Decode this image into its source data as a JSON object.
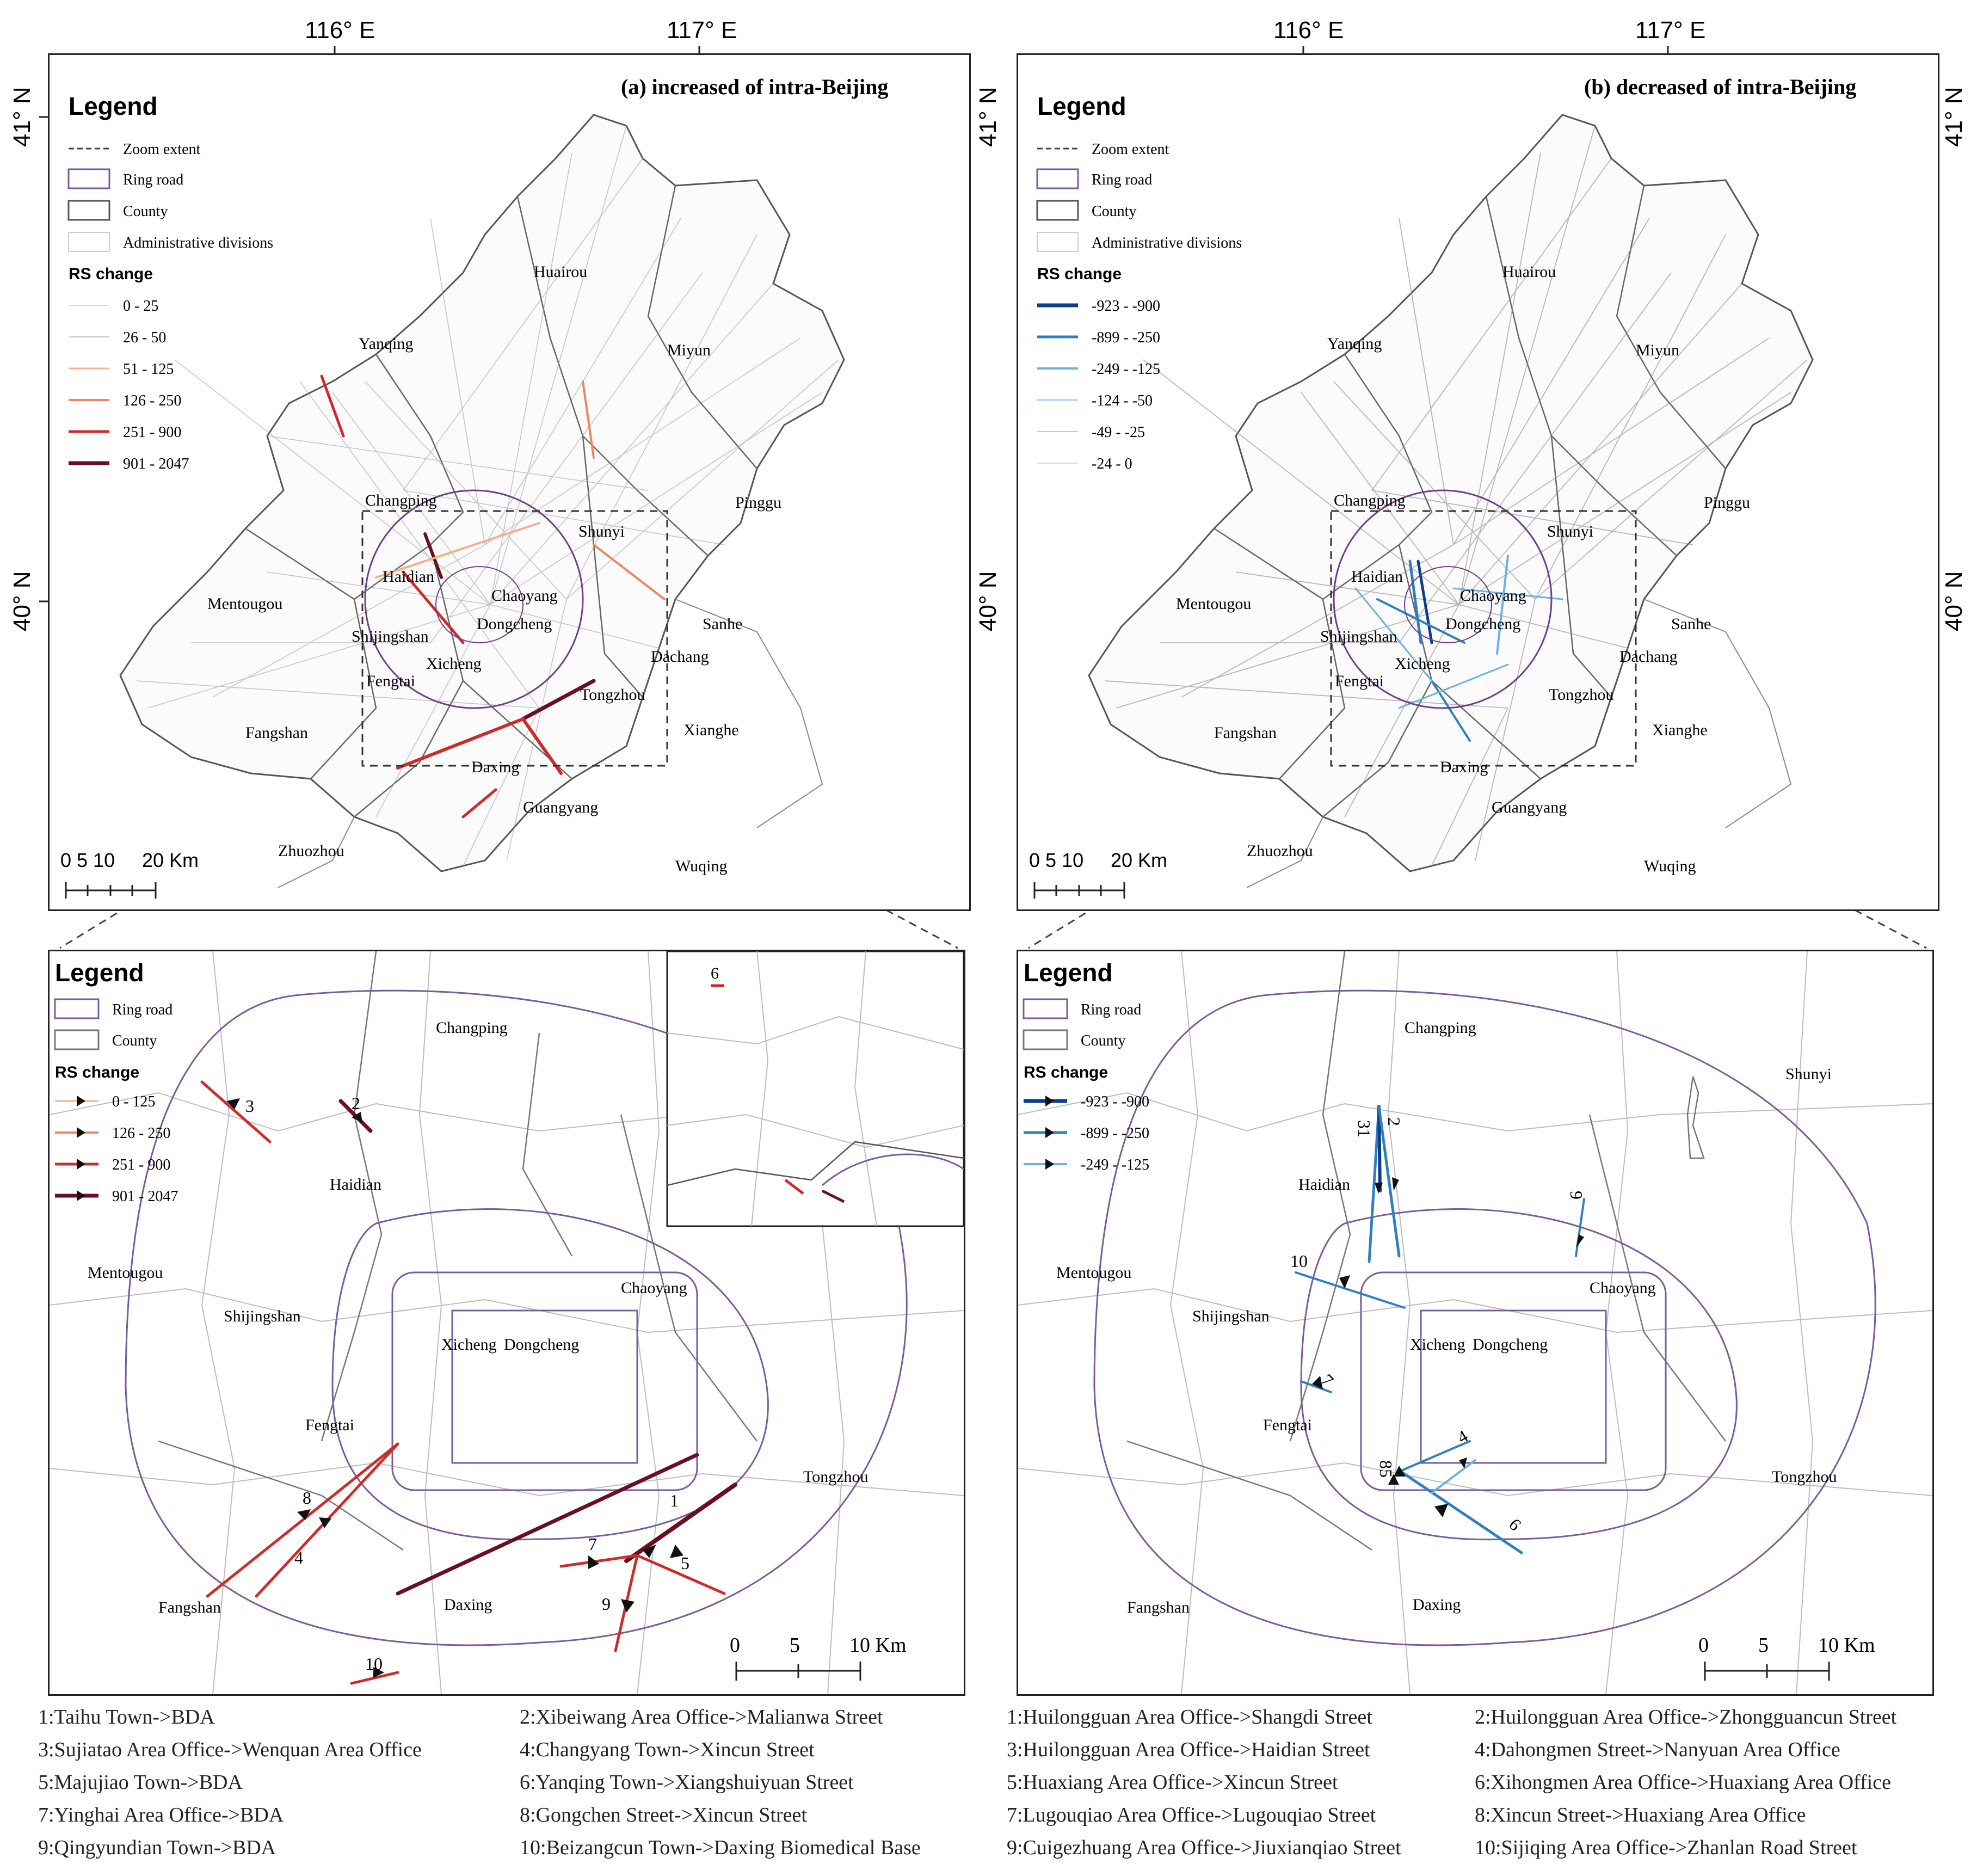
{
  "coords": {
    "lon_116": "116° E",
    "lon_117": "117° E",
    "lat_41": "41° N",
    "lat_40": "40° N"
  },
  "panel_a": {
    "title": "(a) increased of intra-Beijing",
    "legend_title": "Legend",
    "legend_items": [
      "Zoom extent",
      "Ring road",
      "County",
      "Administrative divisions"
    ],
    "rs_title": "RS change",
    "rs_classes": [
      "0 - 25",
      "26 - 50",
      "51 - 125",
      "126 - 250",
      "251 - 900",
      "901 - 2047"
    ],
    "rs_colors": [
      "#d8d8d8",
      "#c7c7c7",
      "#f4b08a",
      "#ee8560",
      "#cf2a2a",
      "#6b0f1f"
    ]
  },
  "panel_b": {
    "title": "(b) decreased of intra-Beijing",
    "legend_title": "Legend",
    "legend_items": [
      "Zoom extent",
      "Ring road",
      "County",
      "Administrative divisions"
    ],
    "rs_title": "RS change",
    "rs_classes": [
      "-923 - -900",
      "-899 - -250",
      "-249 - -125",
      "-124 - -50",
      "-49 - -25",
      "-24 - 0"
    ],
    "rs_colors": [
      "#0b3d8c",
      "#2f7fc0",
      "#6fb0de",
      "#a9d2ec",
      "#c9c9c9",
      "#dcdcdc"
    ]
  },
  "places_top": {
    "huairou": "Huairou",
    "yanqing": "Yanqing",
    "miyun": "Miyun",
    "changping": "Changping",
    "pinggu": "Pinggu",
    "shunyi": "Shunyi",
    "haidian": "Haidian",
    "chaoyang": "Chaoyang",
    "mentougou": "Mentougou",
    "dongcheng": "Dongcheng",
    "shijingshan": "Shijingshan",
    "sanhe": "Sanhe",
    "xicheng": "Xicheng",
    "dachang": "Dachang",
    "fengtai": "Fengtai",
    "tongzhou": "Tongzhou",
    "fangshan": "Fangshan",
    "xianghe": "Xianghe",
    "daxing": "Daxing",
    "guangyang": "Guangyang",
    "zhuozhou": "Zhuozhou",
    "wuqing": "Wuqing"
  },
  "scale_top": {
    "ticks": "0 5 10",
    "end": "20 Km"
  },
  "zoom_a": {
    "legend_title": "Legend",
    "legend_items": [
      "Ring road",
      "County"
    ],
    "rs_title": "RS change",
    "rs_classes": [
      "0 - 125",
      "126 - 250",
      "251 - 900",
      "901 - 2047"
    ],
    "places": {
      "changping": "Changping",
      "haidian": "Haidian",
      "mentougou": "Mentougou",
      "shijingshan": "Shijingshan",
      "chaoyang": "Chaoyang",
      "xicheng": "Xicheng",
      "dongcheng": "Dongcheng",
      "fengtai": "Fengtai",
      "tongzhou": "Tongzhou",
      "fangshan": "Fangshan",
      "daxing": "Daxing"
    },
    "flow_labels": [
      "1",
      "2",
      "3",
      "4",
      "5",
      "6",
      "7",
      "8",
      "9",
      "10"
    ],
    "scale": {
      "t0": "0",
      "t5": "5",
      "t10": "10 Km"
    }
  },
  "zoom_b": {
    "legend_title": "Legend",
    "legend_items": [
      "Ring road",
      "County"
    ],
    "rs_title": "RS change",
    "rs_classes": [
      "-923 - -900",
      "-899 - -250",
      "-249 - -125"
    ],
    "places": {
      "changping": "Changping",
      "shunyi": "Shunyi",
      "haidian": "Haidian",
      "mentougou": "Mentougou",
      "shijingshan": "Shijingshan",
      "chaoyang": "Chaoyang",
      "xicheng": "Xicheng",
      "dongcheng": "Dongcheng",
      "fengtai": "Fengtai",
      "tongzhou": "Tongzhou",
      "fangshan": "Fangshan",
      "daxing": "Daxing"
    },
    "flow_labels": [
      "31",
      "2",
      "9",
      "10",
      "7",
      "4",
      "85",
      "6"
    ],
    "scale": {
      "t0": "0",
      "t5": "5",
      "t10": "10 Km"
    }
  },
  "captions_a": [
    "1:Taihu Town->BDA",
    "2:Xibeiwang Area Office->Malianwa Street",
    "3:Sujiatao Area Office->Wenquan Area Office",
    "4:Changyang Town->Xincun Street",
    "5:Majujiao Town->BDA",
    "6:Yanqing Town->Xiangshuiyuan Street",
    "7:Yinghai Area Office->BDA",
    "8:Gongchen Street->Xincun Street",
    "9:Qingyundian Town->BDA",
    "10:Beizangcun Town->Daxing Biomedical Base"
  ],
  "captions_b": [
    "1:Huilongguan Area Office->Shangdi Street",
    "2:Huilongguan Area Office->Zhongguancun Street",
    "3:Huilongguan Area Office->Haidian Street",
    "4:Dahongmen Street->Nanyuan Area Office",
    "5:Huaxiang Area Office->Xincun Street",
    "6:Xihongmen Area Office->Huaxiang Area Office",
    "7:Lugouqiao Area Office->Lugouqiao Street",
    "8:Xincun Street->Huaxiang Area Office",
    "9:Cuigezhuang Area Office->Jiuxianqiao Street",
    "10:Sijiqing Area Office->Zhanlan Road Street"
  ]
}
